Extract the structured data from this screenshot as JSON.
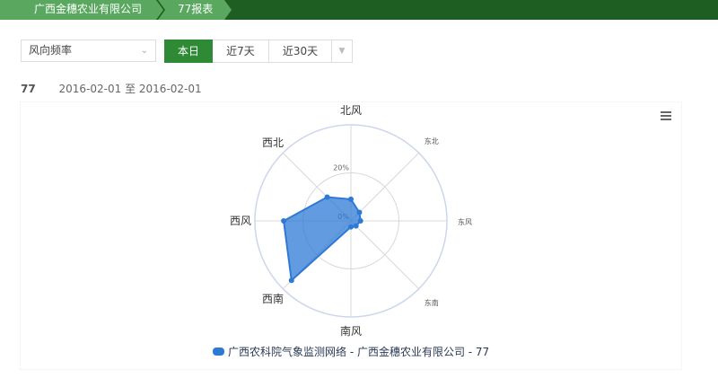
{
  "breadcrumb": [
    "广西金穗农业有限公司",
    "77报表"
  ],
  "selector": {
    "value": "风向频率"
  },
  "range_buttons": [
    {
      "label": "本日",
      "active": true
    },
    {
      "label": "近7天",
      "active": false
    },
    {
      "label": "近30天",
      "active": false
    }
  ],
  "info": {
    "station": "77",
    "date_range": "2016-02-01 至 2016-02-01"
  },
  "legend": {
    "label": "广西农科院气象监测网络 - 广西金穗农业有限公司 - 77",
    "color": "#2d7ad6"
  },
  "chart_data": {
    "type": "radar",
    "categories": [
      "北风",
      "东北",
      "东风",
      "东南",
      "南风",
      "西南",
      "西风",
      "西北"
    ],
    "series": [
      {
        "name": "广西农科院气象监测网络 - 广西金穗农业有限公司 - 77",
        "values": [
          9,
          5,
          4,
          3,
          2.5,
          35,
          28,
          14
        ]
      }
    ],
    "rlim": [
      0,
      40
    ],
    "tick_labels": [
      "0%",
      "20%"
    ],
    "color": "#2d7ad6"
  }
}
